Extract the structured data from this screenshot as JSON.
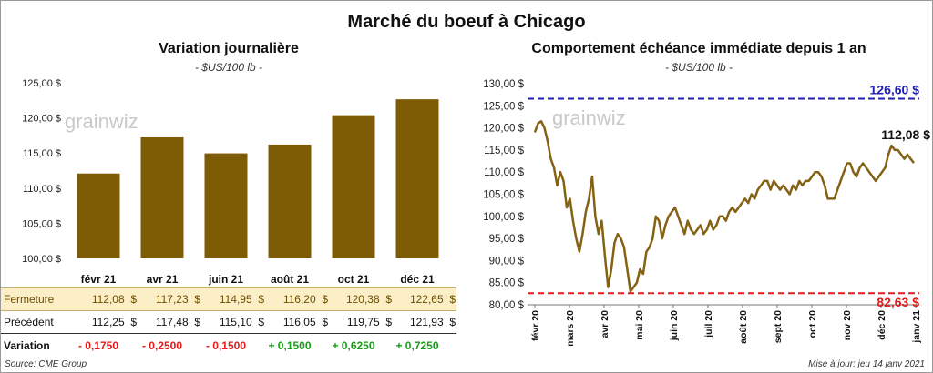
{
  "title": "Marché du boeuf à Chicago",
  "source": "Source: CME Group",
  "update": "Mise à jour: jeu 14 janv 2021",
  "watermark": "grainwiz",
  "colors": {
    "bar": "#7d5c05",
    "line": "#846214",
    "high": "#1f1fb5",
    "low": "#e31b1b"
  },
  "chart_data": [
    {
      "type": "bar",
      "title": "Variation journalière",
      "subtitle": "- $US/100 lb -",
      "categories": [
        "févr 21",
        "avr 21",
        "juin 21",
        "août 21",
        "oct 21",
        "déc 21"
      ],
      "values": [
        112.08,
        117.23,
        114.95,
        116.2,
        120.38,
        122.65
      ],
      "ylim": [
        100,
        125
      ],
      "yticks": [
        "100,00 $",
        "105,00 $",
        "110,00 $",
        "115,00 $",
        "120,00 $",
        "125,00 $"
      ],
      "grid": false
    },
    {
      "type": "line",
      "title": "Comportement échéance immédiate depuis 1 an",
      "subtitle": "- $US/100 lb -",
      "ylim": [
        80,
        130
      ],
      "yticks": [
        "80,00 $",
        "85,00 $",
        "90,00 $",
        "95,00 $",
        "100,00 $",
        "105,00 $",
        "110,00 $",
        "115,00 $",
        "120,00 $",
        "125,00 $",
        "130,00 $"
      ],
      "xticks": [
        "févr 20",
        "mars 20",
        "avr 20",
        "mai 20",
        "juin 20",
        "juil 20",
        "août 20",
        "sept 20",
        "oct 20",
        "nov 20",
        "déc 20",
        "janv 21"
      ],
      "series": [
        {
          "values": [
            119,
            121,
            121.5,
            120,
            117,
            113,
            111,
            107,
            110,
            108,
            102,
            104,
            99,
            95,
            92,
            96,
            101,
            104,
            109,
            100,
            96,
            99,
            91,
            84,
            88,
            94,
            96,
            95,
            93,
            88,
            83,
            84,
            85,
            88,
            87,
            92,
            93,
            95,
            100,
            99,
            95,
            98,
            100,
            101,
            102,
            100,
            98,
            96,
            99,
            97,
            96,
            97,
            98,
            96,
            97,
            99,
            97,
            98,
            100,
            100,
            99,
            101,
            102,
            101,
            102,
            103,
            104,
            103,
            105,
            104,
            106,
            107,
            108,
            108,
            106,
            108,
            107,
            106,
            107,
            106,
            105,
            107,
            106,
            108,
            107,
            108,
            108,
            109,
            110,
            110,
            109,
            107,
            104,
            104,
            104,
            106,
            108,
            110,
            112,
            112,
            110,
            109,
            111,
            112,
            111,
            110,
            109,
            108,
            109,
            110,
            111,
            114,
            116,
            115,
            115,
            114,
            113,
            114,
            113,
            112.08
          ]
        }
      ],
      "reference_lines": [
        {
          "value": 126.6,
          "label": "126,60 $"
        },
        {
          "value": 82.63,
          "label": "82,63 $"
        }
      ],
      "last_label": "112,08 $"
    }
  ],
  "table": {
    "rows": [
      {
        "label": "Fermeture",
        "values": [
          "112,08",
          "117,23",
          "114,95",
          "116,20",
          "120,38",
          "122,65"
        ],
        "unit": "$"
      },
      {
        "label": "Précédent",
        "values": [
          "112,25",
          "117,48",
          "115,10",
          "116,05",
          "119,75",
          "121,93"
        ],
        "unit": "$"
      },
      {
        "label": "Variation",
        "values": [
          "- 0,1750",
          "- 0,2500",
          "- 0,1500",
          "+ 0,1500",
          "+ 0,6250",
          "+ 0,7250"
        ]
      }
    ]
  }
}
